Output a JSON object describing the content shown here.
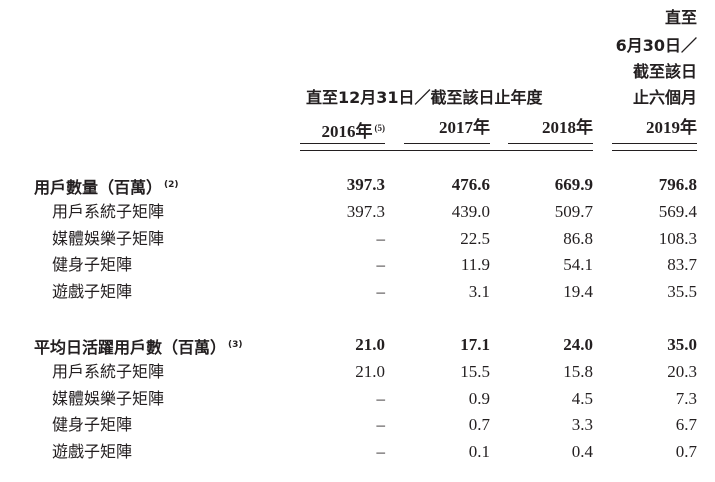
{
  "header": {
    "group_label": "直至12月31日／截至該日止年度",
    "period_label_lines": [
      "直至",
      "6月30日／",
      "截至該日",
      "止六個月"
    ],
    "years": [
      {
        "label": "2016年",
        "note": "(5)"
      },
      {
        "label": "2017年",
        "note": ""
      },
      {
        "label": "2018年",
        "note": ""
      },
      {
        "label": "2019年",
        "note": ""
      }
    ]
  },
  "sections": [
    {
      "title": "用戶數量（百萬）",
      "note": "(2)",
      "totals": [
        "397.3",
        "476.6",
        "669.9",
        "796.8"
      ],
      "rows": [
        {
          "label": "用戶系統子矩陣",
          "values": [
            "397.3",
            "439.0",
            "509.7",
            "569.4"
          ]
        },
        {
          "label": "媒體娛樂子矩陣",
          "values": [
            "–",
            "22.5",
            "86.8",
            "108.3"
          ]
        },
        {
          "label": "健身子矩陣",
          "values": [
            "–",
            "11.9",
            "54.1",
            "83.7"
          ]
        },
        {
          "label": "遊戲子矩陣",
          "values": [
            "–",
            "3.1",
            "19.4",
            "35.5"
          ]
        }
      ]
    },
    {
      "title": "平均日活躍用戶數（百萬）",
      "note": "(3)",
      "totals": [
        "21.0",
        "17.1",
        "24.0",
        "35.0"
      ],
      "rows": [
        {
          "label": "用戶系統子矩陣",
          "values": [
            "21.0",
            "15.5",
            "15.8",
            "20.3"
          ]
        },
        {
          "label": "媒體娛樂子矩陣",
          "values": [
            "–",
            "0.9",
            "4.5",
            "7.3"
          ]
        },
        {
          "label": "健身子矩陣",
          "values": [
            "–",
            "0.7",
            "3.3",
            "6.7"
          ]
        },
        {
          "label": "遊戲子矩陣",
          "values": [
            "–",
            "0.1",
            "0.4",
            "0.7"
          ]
        }
      ]
    }
  ]
}
